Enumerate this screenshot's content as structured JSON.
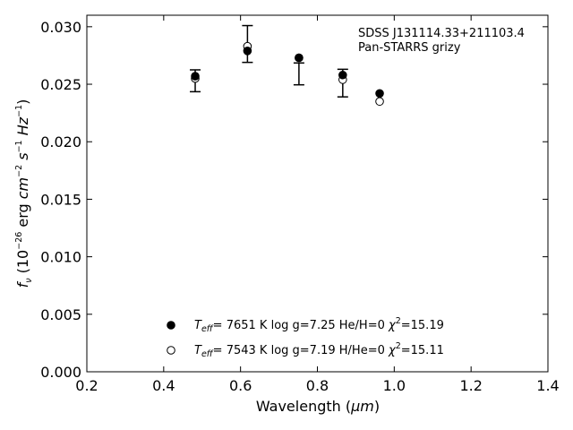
{
  "chart_data": {
    "type": "scatter",
    "title": "",
    "annotation": [
      "SDSS J131114.33+211103.4",
      "Pan-STARRS grizy"
    ],
    "xlabel": "Wavelength",
    "xunit": "μm",
    "ylabel": "f",
    "ylabel_sub": "ν",
    "ylabel_unit": "erg cm s Hz",
    "xlim": [
      0.2,
      1.4
    ],
    "ylim": [
      0.0,
      0.031
    ],
    "xticks": [
      "0.2",
      "0.4",
      "0.6",
      "0.8",
      "1.0",
      "1.2",
      "1.4"
    ],
    "yticks": [
      "0.000",
      "0.005",
      "0.010",
      "0.015",
      "0.020",
      "0.025",
      "0.030"
    ],
    "grid": false,
    "legend_placement": "bottom-center",
    "observed": {
      "x": [
        0.482,
        0.618,
        0.752,
        0.866,
        0.962
      ],
      "y": [
        0.0253,
        0.0285,
        0.0259,
        0.0251,
        0.0235
      ],
      "yerr": [
        0.00095,
        0.0016,
        0.00095,
        0.0012,
        0.0
      ]
    },
    "series": [
      {
        "name": "He/H=0",
        "marker": "filled-circle",
        "teff": "7651 K",
        "logg": "log g=7.25",
        "chi2": "=15.19",
        "x": [
          0.482,
          0.618,
          0.752,
          0.866,
          0.962
        ],
        "y": [
          0.0257,
          0.0279,
          0.0273,
          0.0258,
          0.0242
        ]
      },
      {
        "name": "H/He=0",
        "marker": "open-circle",
        "teff": "7543 K",
        "logg": "log g=7.19",
        "chi2": "=15.11",
        "x": [
          0.482,
          0.618,
          0.752,
          0.866,
          0.962
        ],
        "y": [
          0.0255,
          0.0283,
          0.0273,
          0.0254,
          0.0235
        ]
      }
    ]
  }
}
